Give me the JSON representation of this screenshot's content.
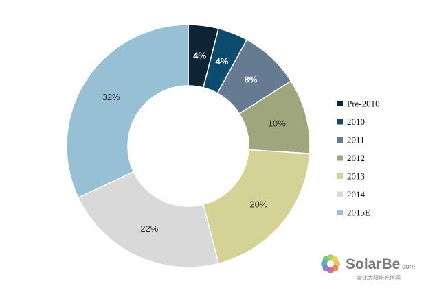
{
  "chart_data": {
    "type": "pie",
    "donut": true,
    "categories": [
      "Pre-2010",
      "2010",
      "2011",
      "2012",
      "2013",
      "2014",
      "2015E"
    ],
    "values": [
      4,
      4,
      8,
      10,
      20,
      22,
      32
    ],
    "value_labels": [
      "4%",
      "4%",
      "8%",
      "10%",
      "20%",
      "22%",
      "32%"
    ],
    "unit": "%",
    "colors": [
      "#0f2336",
      "#0c4a6e",
      "#667b91",
      "#9fa57c",
      "#d4d296",
      "#d9d9d9",
      "#97c0d4"
    ],
    "label_colors": [
      "#ffffff",
      "#ffffff",
      "#ffffff",
      "#333333",
      "#333333",
      "#333333",
      "#333333"
    ],
    "label_weights": [
      "bold",
      "bold",
      "bold",
      "normal",
      "normal",
      "normal",
      "normal"
    ],
    "legend_position": "right",
    "start_angle": "top, clockwise"
  },
  "watermark": {
    "brand_main": "SolarBe",
    "brand_domain": ".com",
    "tagline": "索比太阳能光伏网",
    "icon": "flower-logo"
  }
}
